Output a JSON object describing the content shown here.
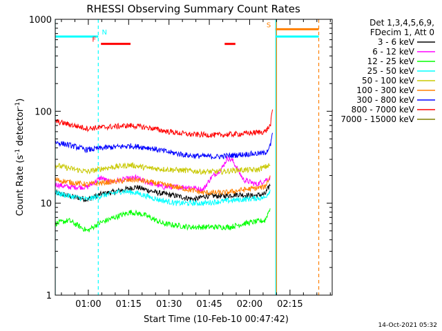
{
  "chart_data": {
    "type": "line",
    "title": "RHESSI Observing Summary Count Rates",
    "xlabel": "Start Time (10-Feb-10 00:47:42)",
    "ylabel_main": "Count Rate (s",
    "ylabel_sup1": "-1",
    "ylabel_mid": " detector",
    "ylabel_sup2": "-1",
    "ylabel_end": ")",
    "y_scale": "log",
    "ylim": [
      1,
      1000
    ],
    "xlim_minutes": [
      0,
      103
    ],
    "y_ticks": [
      {
        "value": 1,
        "label": "1"
      },
      {
        "value": 10,
        "label": "10"
      },
      {
        "value": 100,
        "label": "100"
      },
      {
        "value": 1000,
        "label": "1000"
      }
    ],
    "x_ticks": [
      {
        "minute": 12.3,
        "label": "01:00"
      },
      {
        "minute": 27.3,
        "label": "01:15"
      },
      {
        "minute": 42.3,
        "label": "01:30"
      },
      {
        "minute": 57.3,
        "label": "01:45"
      },
      {
        "minute": 72.3,
        "label": "02:00"
      },
      {
        "minute": 87.3,
        "label": "02:15"
      }
    ],
    "legend_header": [
      "Det 1,3,4,5,6,9,",
      "FDecim 1, Att 0"
    ],
    "series": [
      {
        "name": "3 - 6 keV",
        "color": "#000000",
        "points": [
          [
            0,
            13
          ],
          [
            5,
            12
          ],
          [
            12,
            11
          ],
          [
            17,
            12.5
          ],
          [
            23,
            13.5
          ],
          [
            30,
            15
          ],
          [
            38,
            13
          ],
          [
            45,
            12
          ],
          [
            52,
            11
          ],
          [
            56,
            12
          ],
          [
            63,
            12
          ],
          [
            68,
            12.5
          ],
          [
            73,
            12
          ],
          [
            78,
            12.5
          ],
          [
            80,
            16
          ]
        ]
      },
      {
        "name": "6 - 12 keV",
        "color": "#ff00ff",
        "points": [
          [
            0,
            16
          ],
          [
            5,
            15
          ],
          [
            12,
            15
          ],
          [
            17,
            19
          ],
          [
            20,
            17
          ],
          [
            30,
            19
          ],
          [
            34,
            17
          ],
          [
            40,
            15
          ],
          [
            50,
            15
          ],
          [
            55,
            14
          ],
          [
            58,
            19
          ],
          [
            62,
            24
          ],
          [
            64,
            31
          ],
          [
            66,
            29
          ],
          [
            70,
            18
          ],
          [
            75,
            16
          ],
          [
            80,
            19
          ]
        ]
      },
      {
        "name": "12 - 25 keV",
        "color": "#00ff00",
        "points": [
          [
            0,
            6
          ],
          [
            5,
            6.5
          ],
          [
            12,
            5
          ],
          [
            16,
            6
          ],
          [
            22,
            7
          ],
          [
            28,
            8
          ],
          [
            33,
            7.5
          ],
          [
            40,
            6
          ],
          [
            50,
            5.5
          ],
          [
            60,
            5.5
          ],
          [
            65,
            5.5
          ],
          [
            70,
            6
          ],
          [
            78,
            6.5
          ],
          [
            80,
            9
          ]
        ]
      },
      {
        "name": "25 - 50 keV",
        "color": "#00ffff",
        "points": [
          [
            0,
            13
          ],
          [
            5,
            12
          ],
          [
            12,
            11
          ],
          [
            17,
            12
          ],
          [
            25,
            13.5
          ],
          [
            30,
            13
          ],
          [
            38,
            11
          ],
          [
            45,
            10
          ],
          [
            55,
            10
          ],
          [
            62,
            10.5
          ],
          [
            70,
            11
          ],
          [
            78,
            11.5
          ],
          [
            80,
            14
          ]
        ]
      },
      {
        "name": "50 - 100 keV",
        "color": "#c8c800",
        "points": [
          [
            0,
            26
          ],
          [
            5,
            24
          ],
          [
            12,
            22
          ],
          [
            18,
            24
          ],
          [
            28,
            26
          ],
          [
            35,
            24
          ],
          [
            45,
            23
          ],
          [
            55,
            22
          ],
          [
            62,
            22
          ],
          [
            68,
            23
          ],
          [
            75,
            23
          ],
          [
            80,
            26
          ]
        ]
      },
      {
        "name": "100 - 300 keV",
        "color": "#ff8000",
        "points": [
          [
            0,
            18
          ],
          [
            5,
            17
          ],
          [
            12,
            16
          ],
          [
            20,
            17
          ],
          [
            30,
            18
          ],
          [
            40,
            16
          ],
          [
            50,
            14
          ],
          [
            55,
            13
          ],
          [
            63,
            13
          ],
          [
            70,
            14
          ],
          [
            78,
            15
          ],
          [
            80,
            20
          ]
        ]
      },
      {
        "name": "300 - 800 keV",
        "color": "#0000ff",
        "points": [
          [
            0,
            46
          ],
          [
            5,
            43
          ],
          [
            12,
            38
          ],
          [
            18,
            40
          ],
          [
            28,
            42
          ],
          [
            35,
            40
          ],
          [
            42,
            36
          ],
          [
            50,
            33
          ],
          [
            60,
            32
          ],
          [
            70,
            34
          ],
          [
            78,
            35
          ],
          [
            80,
            42
          ],
          [
            81,
            60
          ]
        ]
      },
      {
        "name": "800 - 7000 keV",
        "color": "#ff0000",
        "points": [
          [
            0,
            78
          ],
          [
            5,
            72
          ],
          [
            12,
            65
          ],
          [
            18,
            67
          ],
          [
            28,
            70
          ],
          [
            35,
            66
          ],
          [
            42,
            60
          ],
          [
            50,
            56
          ],
          [
            60,
            55
          ],
          [
            70,
            57
          ],
          [
            78,
            60
          ],
          [
            80,
            70
          ],
          [
            81,
            110
          ]
        ]
      },
      {
        "name": "7000 - 15000 keV",
        "color": "#808000",
        "points": []
      }
    ],
    "flags": [
      {
        "label": "N",
        "color": "#00ffff",
        "value": 650,
        "segments": [
          [
            0,
            16
          ],
          [
            82,
            98
          ]
        ]
      },
      {
        "label": "F",
        "color": "#ff0000",
        "value": 540,
        "segments": [
          [
            17,
            28
          ],
          [
            63,
            67
          ]
        ]
      },
      {
        "label": "S",
        "color": "#ff8000",
        "value": 780,
        "segments": [
          [
            82,
            98
          ]
        ]
      }
    ],
    "vlines": [
      {
        "minute": 0,
        "color": "#00ffff",
        "style": "solid"
      },
      {
        "minute": 16,
        "color": "#00ffff",
        "style": "dashed"
      },
      {
        "minute": 82,
        "color": "#00ffff",
        "style": "solid"
      },
      {
        "minute": 82.3,
        "color": "#ff8000",
        "style": "solid"
      },
      {
        "minute": 98,
        "color": "#ff8000",
        "style": "dashed"
      }
    ]
  },
  "footer": {
    "timestamp": "14-Oct-2021 05:32"
  }
}
